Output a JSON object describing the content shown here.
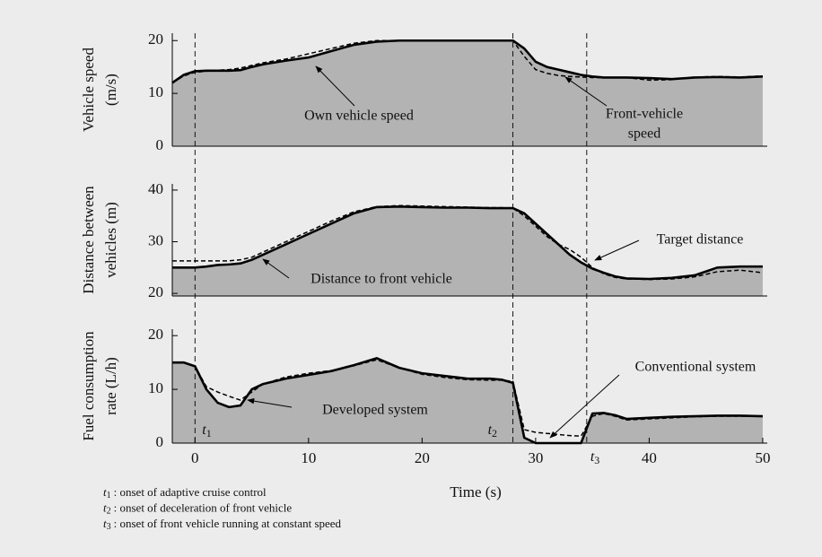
{
  "chart_data": [
    {
      "type": "line",
      "ylabel": [
        "Vehicle speed",
        "(m/s)"
      ],
      "x": [
        -2,
        -1,
        0,
        1,
        2,
        3,
        4,
        5,
        6,
        8,
        10,
        12,
        14,
        16,
        18,
        20,
        22,
        24,
        26,
        27,
        28,
        29,
        30,
        31,
        32,
        33,
        34,
        35,
        36,
        37,
        38,
        40,
        42,
        44,
        46,
        48,
        50
      ],
      "xlim": [
        -2,
        50.4
      ],
      "ylim": [
        0,
        21.4
      ],
      "yticks": [
        0,
        10,
        20
      ],
      "fill_color": "#b3b3b3",
      "series": [
        {
          "name": "Own vehicle speed",
          "color": "#000000",
          "style": "solid",
          "filled": true,
          "values": [
            12,
            13.5,
            14.2,
            14.3,
            14.3,
            14.3,
            14.4,
            15,
            15.5,
            16.2,
            16.8,
            18,
            19.2,
            19.8,
            20,
            20,
            20,
            20,
            20,
            20,
            20,
            18.5,
            16,
            15,
            14.5,
            14,
            13.5,
            13.2,
            13,
            13,
            13,
            12.9,
            12.7,
            13,
            13.1,
            13,
            13.2
          ]
        },
        {
          "name": "Front-vehicle speed",
          "color": "#000000",
          "style": "dashed",
          "values": [
            12,
            13.3,
            14,
            14.2,
            14.4,
            14.5,
            14.8,
            15.3,
            15.8,
            16.5,
            17.5,
            18.5,
            19.5,
            20,
            20,
            20,
            20,
            20,
            20,
            20,
            20,
            17,
            14.5,
            13.8,
            13.4,
            13.2,
            13.1,
            13,
            13,
            13,
            13,
            12.5,
            12.6,
            13.1,
            13.2,
            13.1,
            13.3
          ]
        }
      ],
      "annotations": [
        [
          "Own vehicle speed"
        ],
        [
          "Front-vehicle",
          "speed"
        ]
      ]
    },
    {
      "type": "line",
      "ylabel": [
        "Distance between",
        "vehicles (m)"
      ],
      "x": [
        -2,
        -1,
        0,
        1,
        2,
        3,
        4,
        5,
        6,
        8,
        10,
        12,
        14,
        16,
        18,
        20,
        22,
        24,
        26,
        27,
        28,
        29,
        30,
        31,
        32,
        33,
        34,
        35,
        36,
        37,
        38,
        40,
        42,
        44,
        46,
        48,
        50
      ],
      "xlim": [
        -2,
        50.4
      ],
      "ylim": [
        19.5,
        41.2
      ],
      "yticks": [
        20,
        30,
        40
      ],
      "fill_color": "#b3b3b3",
      "series": [
        {
          "name": "Distance to front vehicle",
          "color": "#000000",
          "style": "solid",
          "filled": true,
          "values": [
            25,
            25,
            25,
            25.2,
            25.5,
            25.6,
            25.8,
            26.5,
            27.5,
            29.5,
            31.5,
            33.5,
            35.5,
            36.7,
            36.8,
            36.7,
            36.6,
            36.6,
            36.5,
            36.5,
            36.5,
            35.5,
            33.5,
            31.5,
            29.5,
            27.5,
            26,
            24.8,
            24,
            23.3,
            22.9,
            22.8,
            23,
            23.5,
            25,
            25.2,
            25.2
          ]
        },
        {
          "name": "Target distance",
          "color": "#000000",
          "style": "dashed",
          "values": [
            26.3,
            26.3,
            26.3,
            26.3,
            26.3,
            26.3,
            26.5,
            27,
            28,
            30,
            32,
            34,
            35.8,
            36.8,
            37,
            36.9,
            36.8,
            36.7,
            36.6,
            36.6,
            36.5,
            35,
            33,
            31,
            29.5,
            28.5,
            27,
            25,
            23.8,
            23.1,
            22.8,
            22.7,
            22.8,
            23.2,
            24.2,
            24.5,
            24
          ]
        }
      ],
      "annotations": [
        [
          "Target distance"
        ],
        [
          "Distance to front vehicle"
        ]
      ]
    },
    {
      "type": "line",
      "ylabel": [
        "Fuel consumption",
        "rate (L/h)"
      ],
      "xlabel": "Time (s)",
      "x": [
        -2,
        -1,
        0,
        1,
        2,
        3,
        4,
        5,
        6,
        8,
        10,
        12,
        14,
        16,
        18,
        20,
        22,
        24,
        26,
        27,
        28,
        29,
        30,
        31,
        32,
        33,
        34,
        35,
        36,
        37,
        38,
        40,
        42,
        44,
        46,
        48,
        50
      ],
      "xlim": [
        -2,
        50.4
      ],
      "xticks": [
        0,
        10,
        20,
        30,
        40,
        50
      ],
      "ylim": [
        0,
        21.2
      ],
      "yticks": [
        0,
        10,
        20
      ],
      "fill_color": "#b3b3b3",
      "series": [
        {
          "name": "Developed system",
          "color": "#000000",
          "style": "solid",
          "filled": true,
          "values": [
            15,
            15,
            14.3,
            10,
            7.5,
            6.7,
            7,
            10,
            11,
            12,
            12.7,
            13.4,
            14.5,
            15.8,
            14,
            13,
            12.5,
            12,
            12,
            11.8,
            11.2,
            1,
            0,
            0,
            0,
            0,
            0,
            5.5,
            5.6,
            5.2,
            4.5,
            4.7,
            4.9,
            5,
            5.1,
            5.1,
            5
          ]
        },
        {
          "name": "Conventional system",
          "color": "#000000",
          "style": "dashed",
          "values": [
            15,
            15,
            14.3,
            10.5,
            9.5,
            8.7,
            8,
            9.5,
            11,
            12.3,
            13,
            13.5,
            14.4,
            15.5,
            14,
            12.8,
            12.2,
            11.8,
            11.7,
            11.7,
            11.5,
            2.5,
            2,
            1.8,
            1.6,
            1.4,
            1.3,
            5,
            5.5,
            5,
            4.3,
            4.5,
            4.7,
            4.9,
            5,
            5,
            5
          ]
        }
      ],
      "annotations": [
        [
          "Conventional system"
        ],
        [
          "Developed system"
        ]
      ]
    }
  ],
  "markers": [
    {
      "x": 0,
      "symbol": "t",
      "index": "1",
      "definition": ": onset of adaptive cruise control"
    },
    {
      "x": 28,
      "symbol": "t",
      "index": "2",
      "definition": ": onset of deceleration of front vehicle"
    },
    {
      "x": 34.5,
      "symbol": "t",
      "index": "3",
      "definition": ": onset of front vehicle running at constant speed"
    }
  ]
}
